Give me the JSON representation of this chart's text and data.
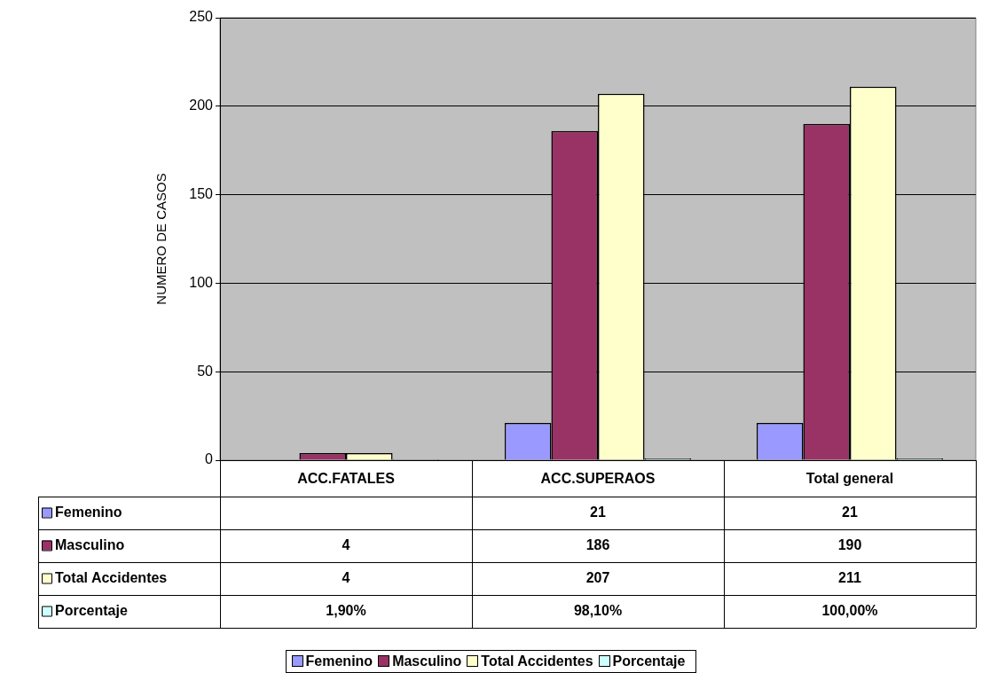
{
  "chart_data": {
    "type": "bar",
    "ylabel": "NUMERO DE CASOS",
    "categories": [
      "ACC.FATALES",
      "ACC.SUPERAOS",
      "Total general"
    ],
    "series": [
      {
        "name": "Femenino",
        "color": "#9999ff",
        "values": [
          null,
          21,
          21
        ],
        "value_labels": [
          null,
          "21",
          "21"
        ]
      },
      {
        "name": "Masculino",
        "color": "#993366",
        "values": [
          4,
          186,
          190
        ],
        "value_labels": [
          "4",
          "186",
          "190"
        ]
      },
      {
        "name": "Total Accidentes",
        "color": "#ffffcc",
        "values": [
          4,
          207,
          211
        ],
        "value_labels": [
          "4",
          "207",
          "211"
        ]
      },
      {
        "name": "Porcentaje",
        "color": "#ccffff",
        "values": [
          0.019,
          0.981,
          1
        ],
        "value_labels": [
          "1,90%",
          "98,10%",
          "100,00%"
        ]
      }
    ],
    "ylim": [
      0,
      250
    ],
    "yticks": [
      0,
      50,
      100,
      150,
      200,
      250
    ],
    "grid": "y",
    "legend": "bottom"
  }
}
